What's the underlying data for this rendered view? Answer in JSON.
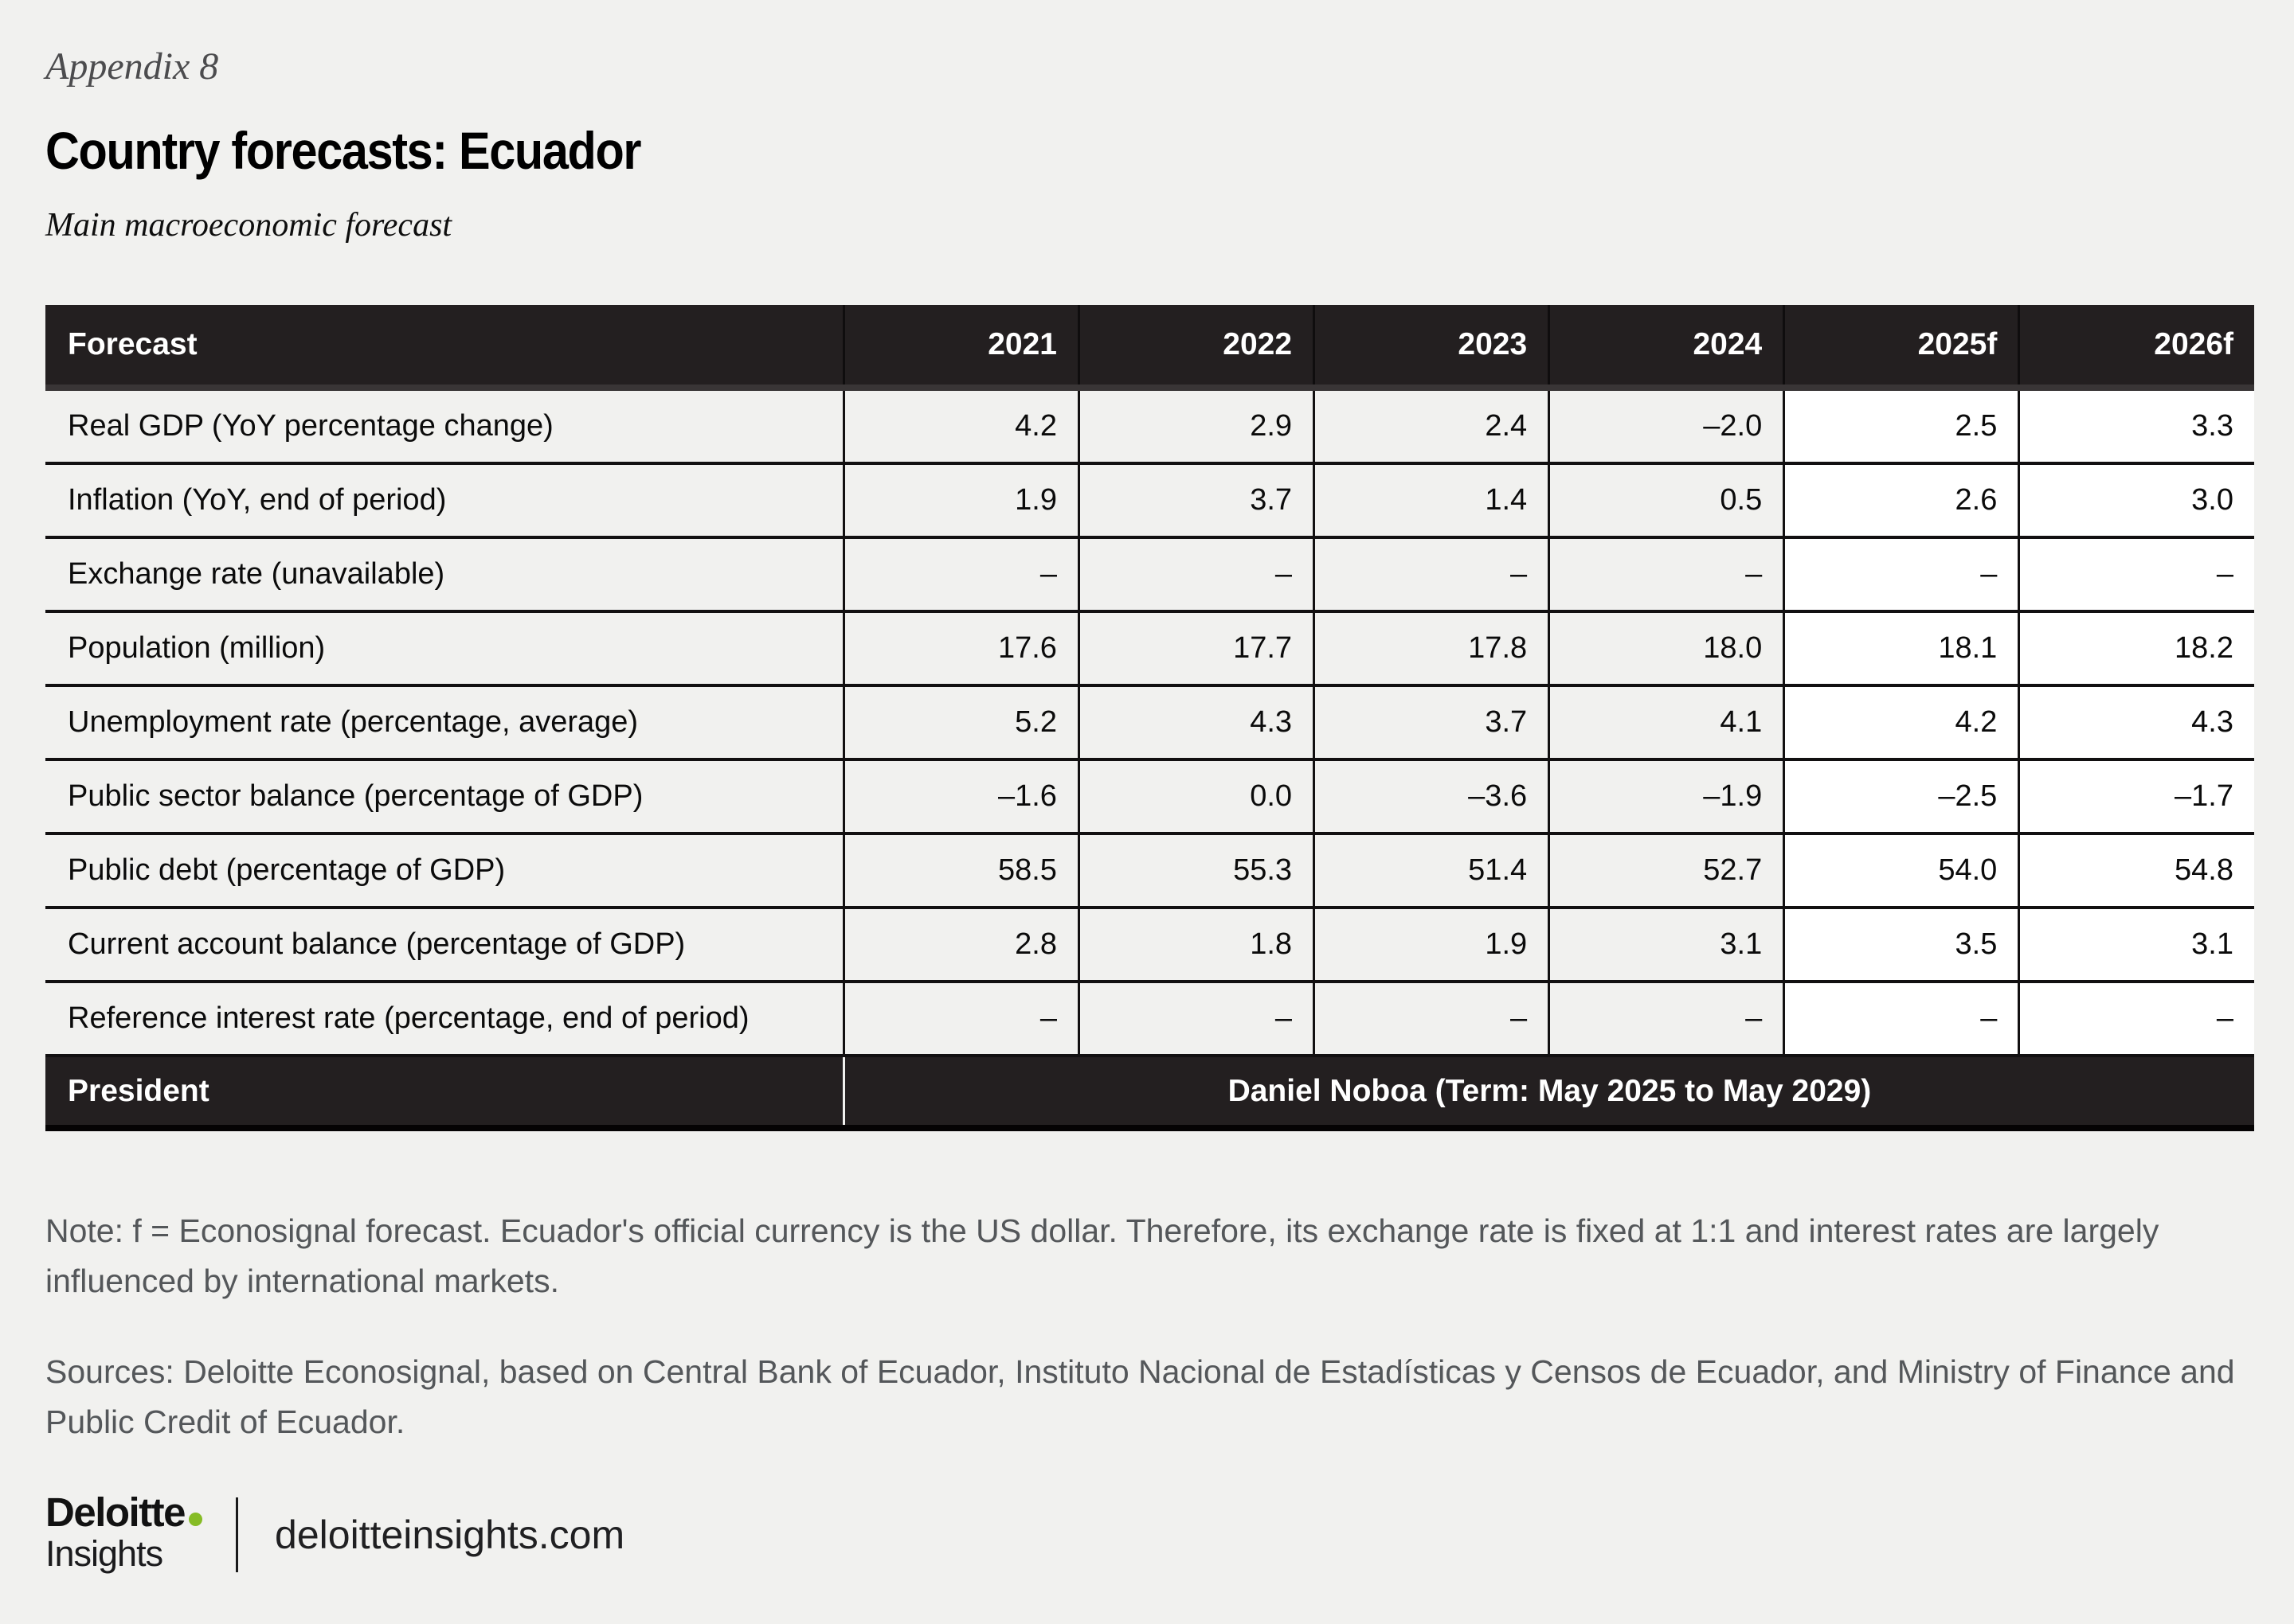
{
  "page": {
    "appendix_label": "Appendix 8",
    "title": "Country forecasts: Ecuador",
    "subtitle": "Main macroeconomic forecast",
    "note": "Note: f = Econosignal forecast. Ecuador's official currency is the US dollar. Therefore, its exchange rate is fixed at 1:1 and interest rates are largely influenced by international markets.",
    "sources": "Sources: Deloitte Econosignal, based on Central Bank of Ecuador, Instituto Nacional de Estadísticas y Censos de Ecuador, and Ministry of Finance and Public Credit of Ecuador."
  },
  "table": {
    "header": [
      "Forecast",
      "2021",
      "2022",
      "2023",
      "2024",
      "2025f",
      "2026f"
    ],
    "rows": [
      {
        "label": "Real GDP (YoY percentage change)",
        "values": [
          "4.2",
          "2.9",
          "2.4",
          "–2.0",
          "2.5",
          "3.3"
        ]
      },
      {
        "label": "Inflation (YoY, end of period)",
        "values": [
          "1.9",
          "3.7",
          "1.4",
          "0.5",
          "2.6",
          "3.0"
        ]
      },
      {
        "label": "Exchange rate (unavailable)",
        "values": [
          "–",
          "–",
          "–",
          "–",
          "–",
          "–"
        ]
      },
      {
        "label": "Population (million)",
        "values": [
          "17.6",
          "17.7",
          "17.8",
          "18.0",
          "18.1",
          "18.2"
        ]
      },
      {
        "label": "Unemployment rate (percentage, average)",
        "values": [
          "5.2",
          "4.3",
          "3.7",
          "4.1",
          "4.2",
          "4.3"
        ]
      },
      {
        "label": "Public sector balance (percentage of GDP)",
        "values": [
          "–1.6",
          "0.0",
          "–3.6",
          "–1.9",
          "–2.5",
          "–1.7"
        ]
      },
      {
        "label": "Public debt (percentage of GDP)",
        "values": [
          "58.5",
          "55.3",
          "51.4",
          "52.7",
          "54.0",
          "54.8"
        ]
      },
      {
        "label": "Current account balance (percentage of GDP)",
        "values": [
          "2.8",
          "1.8",
          "1.9",
          "3.1",
          "3.5",
          "3.1"
        ]
      },
      {
        "label": "Reference interest rate (percentage, end of period)",
        "values": [
          "–",
          "–",
          "–",
          "–",
          "–",
          "–"
        ]
      }
    ],
    "president_label": "President",
    "president_value": "Daniel Noboa (Term: May 2025 to May 2029)"
  },
  "footer": {
    "brand_line1": "Deloitte",
    "brand_line2": "Insights",
    "site": "deloitteinsights.com"
  },
  "colors": {
    "page_background": "#f1f1ef",
    "table_header_background": "#231f20",
    "forecast_cell_background": "#ffffff",
    "grid_line": "#121011",
    "note_text": "#54575a",
    "deloitte_green": "#86bc25"
  }
}
